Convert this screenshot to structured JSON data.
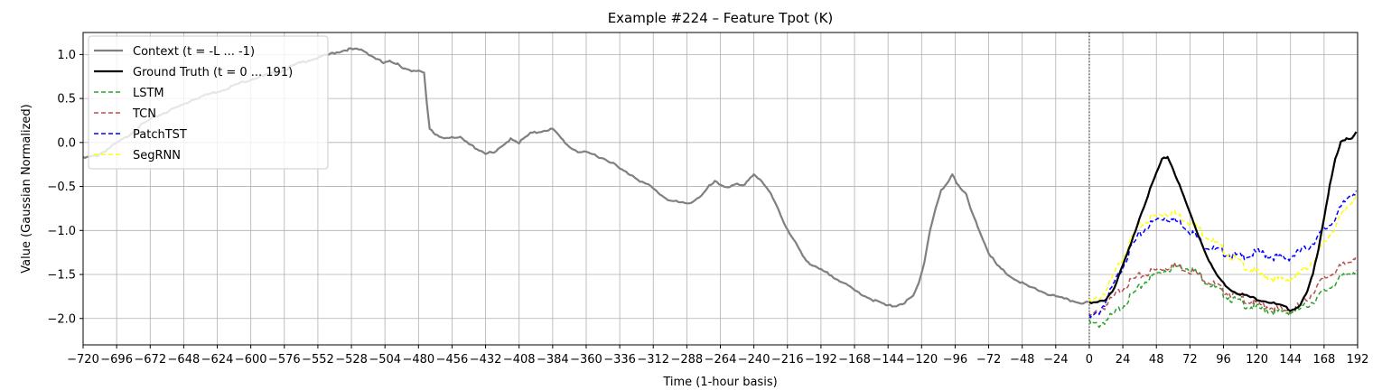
{
  "chart_data": {
    "type": "line",
    "title": "Example #224 – Feature Tpot (K)",
    "xlabel": "Time (1-hour basis)",
    "ylabel": "Value (Gaussian Normalized)",
    "xlim": [
      -720,
      192
    ],
    "ylim": [
      -2.3,
      1.25
    ],
    "xticks": [
      -720,
      -696,
      -672,
      -648,
      -624,
      -600,
      -576,
      -552,
      -528,
      -504,
      -480,
      -456,
      -432,
      -408,
      -384,
      -360,
      -336,
      -312,
      -288,
      -264,
      -240,
      -216,
      -192,
      -168,
      -144,
      -120,
      -96,
      -72,
      -48,
      -24,
      0,
      24,
      48,
      72,
      96,
      120,
      144,
      168,
      192
    ],
    "yticks": [
      -2.0,
      -1.5,
      -1.0,
      -0.5,
      0.0,
      0.5,
      1.0
    ],
    "grid": true,
    "legend_position": "top-left",
    "forecast_start_line": 0,
    "series": [
      {
        "name": "Context (t = -L ... -1)",
        "color": "#808080",
        "style": "solid",
        "x": [
          -720,
          -710,
          -700,
          -690,
          -680,
          -670,
          -660,
          -650,
          -640,
          -630,
          -620,
          -610,
          -600,
          -590,
          -580,
          -570,
          -560,
          -550,
          -540,
          -530,
          -520,
          -512,
          -505,
          -500,
          -495,
          -490,
          -485,
          -480,
          -476,
          -474,
          -472,
          -468,
          -462,
          -456,
          -450,
          -444,
          -438,
          -432,
          -426,
          -420,
          -414,
          -408,
          -400,
          -394,
          -390,
          -384,
          -378,
          -372,
          -366,
          -360,
          -354,
          -348,
          -342,
          -336,
          -330,
          -326,
          -320,
          -314,
          -310,
          -306,
          -300,
          -294,
          -288,
          -282,
          -276,
          -272,
          -268,
          -264,
          -260,
          -256,
          -252,
          -248,
          -244,
          -240,
          -236,
          -232,
          -228,
          -224,
          -220,
          -216,
          -212,
          -208,
          -204,
          -200,
          -196,
          -192,
          -186,
          -180,
          -174,
          -168,
          -162,
          -156,
          -150,
          -144,
          -138,
          -132,
          -126,
          -122,
          -118,
          -114,
          -110,
          -106,
          -102,
          -98,
          -95,
          -92,
          -88,
          -84,
          -80,
          -76,
          -72,
          -66,
          -60,
          -54,
          -48,
          -42,
          -36,
          -30,
          -24,
          -18,
          -12,
          -6,
          -1
        ],
        "y": [
          -0.18,
          -0.15,
          -0.05,
          0.05,
          0.18,
          0.28,
          0.35,
          0.42,
          0.5,
          0.55,
          0.6,
          0.66,
          0.72,
          0.76,
          0.8,
          0.87,
          0.93,
          0.97,
          1.02,
          1.06,
          1.05,
          0.97,
          0.9,
          0.92,
          0.9,
          0.84,
          0.8,
          0.82,
          0.8,
          0.45,
          0.15,
          0.08,
          0.05,
          0.07,
          0.05,
          -0.02,
          -0.07,
          -0.12,
          -0.12,
          -0.05,
          0.05,
          0.0,
          0.1,
          0.12,
          0.14,
          0.15,
          0.05,
          -0.05,
          -0.1,
          -0.12,
          -0.14,
          -0.18,
          -0.22,
          -0.3,
          -0.35,
          -0.38,
          -0.45,
          -0.5,
          -0.55,
          -0.6,
          -0.66,
          -0.68,
          -0.7,
          -0.65,
          -0.58,
          -0.5,
          -0.45,
          -0.48,
          -0.5,
          -0.5,
          -0.48,
          -0.5,
          -0.42,
          -0.36,
          -0.42,
          -0.5,
          -0.58,
          -0.7,
          -0.85,
          -1.0,
          -1.1,
          -1.2,
          -1.3,
          -1.38,
          -1.42,
          -1.45,
          -1.5,
          -1.55,
          -1.62,
          -1.68,
          -1.73,
          -1.78,
          -1.82,
          -1.86,
          -1.85,
          -1.82,
          -1.75,
          -1.6,
          -1.35,
          -1.0,
          -0.75,
          -0.55,
          -0.48,
          -0.35,
          -0.45,
          -0.52,
          -0.6,
          -0.8,
          -0.95,
          -1.1,
          -1.25,
          -1.4,
          -1.48,
          -1.55,
          -1.6,
          -1.65,
          -1.68,
          -1.72,
          -1.75,
          -1.78,
          -1.8,
          -1.82,
          -1.82
        ]
      },
      {
        "name": "Ground Truth (t = 0 ... 191)",
        "color": "#000000",
        "style": "solid",
        "x": [
          0,
          6,
          12,
          18,
          24,
          30,
          36,
          42,
          48,
          52,
          56,
          60,
          66,
          72,
          78,
          84,
          90,
          96,
          102,
          108,
          114,
          120,
          126,
          132,
          138,
          144,
          148,
          152,
          156,
          160,
          164,
          168,
          172,
          176,
          180,
          184,
          188,
          191
        ],
        "y": [
          -1.83,
          -1.82,
          -1.78,
          -1.65,
          -1.4,
          -1.15,
          -0.85,
          -0.6,
          -0.35,
          -0.2,
          -0.16,
          -0.3,
          -0.55,
          -0.8,
          -1.05,
          -1.28,
          -1.48,
          -1.6,
          -1.68,
          -1.72,
          -1.75,
          -1.78,
          -1.8,
          -1.83,
          -1.86,
          -1.9,
          -1.88,
          -1.82,
          -1.7,
          -1.5,
          -1.2,
          -0.85,
          -0.5,
          -0.2,
          0.0,
          0.05,
          0.05,
          0.12
        ]
      },
      {
        "name": "LSTM",
        "color": "#2ca02c",
        "style": "dashed",
        "x": [
          0,
          6,
          12,
          18,
          24,
          30,
          36,
          42,
          48,
          54,
          60,
          66,
          72,
          78,
          84,
          90,
          96,
          102,
          108,
          114,
          120,
          126,
          132,
          138,
          144,
          150,
          156,
          162,
          168,
          174,
          180,
          186,
          191
        ],
        "y": [
          -2.05,
          -2.08,
          -2.02,
          -1.95,
          -1.85,
          -1.75,
          -1.65,
          -1.55,
          -1.5,
          -1.45,
          -1.42,
          -1.4,
          -1.42,
          -1.5,
          -1.58,
          -1.65,
          -1.72,
          -1.78,
          -1.82,
          -1.86,
          -1.88,
          -1.9,
          -1.92,
          -1.93,
          -1.93,
          -1.9,
          -1.85,
          -1.78,
          -1.7,
          -1.62,
          -1.55,
          -1.48,
          -1.45
        ]
      },
      {
        "name": "TCN",
        "color": "#b5514f",
        "style": "dashed",
        "x": [
          0,
          6,
          12,
          18,
          24,
          30,
          36,
          42,
          48,
          54,
          60,
          66,
          72,
          78,
          84,
          90,
          96,
          102,
          108,
          114,
          120,
          126,
          132,
          138,
          144,
          150,
          156,
          162,
          168,
          174,
          180,
          186,
          191
        ],
        "y": [
          -1.98,
          -1.93,
          -1.85,
          -1.75,
          -1.65,
          -1.58,
          -1.52,
          -1.48,
          -1.45,
          -1.42,
          -1.4,
          -1.42,
          -1.45,
          -1.5,
          -1.56,
          -1.62,
          -1.68,
          -1.72,
          -1.76,
          -1.8,
          -1.83,
          -1.86,
          -1.88,
          -1.9,
          -1.9,
          -1.86,
          -1.78,
          -1.65,
          -1.55,
          -1.48,
          -1.42,
          -1.35,
          -1.28
        ]
      },
      {
        "name": "PatchTST",
        "color": "#0000ff",
        "style": "dashed",
        "x": [
          0,
          6,
          12,
          18,
          24,
          30,
          36,
          42,
          48,
          54,
          60,
          66,
          72,
          78,
          84,
          90,
          96,
          102,
          108,
          114,
          120,
          126,
          132,
          138,
          144,
          150,
          156,
          162,
          168,
          174,
          180,
          186,
          191
        ],
        "y": [
          -2.0,
          -1.95,
          -1.8,
          -1.6,
          -1.4,
          -1.2,
          -1.05,
          -0.95,
          -0.88,
          -0.85,
          -0.88,
          -0.92,
          -1.0,
          -1.1,
          -1.18,
          -1.22,
          -1.25,
          -1.28,
          -1.3,
          -1.28,
          -1.25,
          -1.27,
          -1.3,
          -1.32,
          -1.3,
          -1.25,
          -1.2,
          -1.1,
          -1.0,
          -0.9,
          -0.75,
          -0.6,
          -0.55
        ]
      },
      {
        "name": "SegRNN",
        "color": "#ffff00",
        "style": "dashed",
        "x": [
          0,
          6,
          12,
          18,
          24,
          30,
          36,
          42,
          48,
          54,
          60,
          66,
          72,
          78,
          84,
          90,
          96,
          102,
          108,
          114,
          120,
          126,
          132,
          138,
          144,
          150,
          156,
          162,
          168,
          174,
          180,
          186,
          191
        ],
        "y": [
          -1.82,
          -1.78,
          -1.68,
          -1.5,
          -1.3,
          -1.1,
          -0.95,
          -0.88,
          -0.83,
          -0.8,
          -0.8,
          -0.85,
          -0.9,
          -0.98,
          -1.06,
          -1.14,
          -1.22,
          -1.3,
          -1.37,
          -1.43,
          -1.48,
          -1.52,
          -1.55,
          -1.56,
          -1.55,
          -1.5,
          -1.42,
          -1.3,
          -1.15,
          -1.0,
          -0.85,
          -0.7,
          -0.58
        ]
      }
    ]
  }
}
